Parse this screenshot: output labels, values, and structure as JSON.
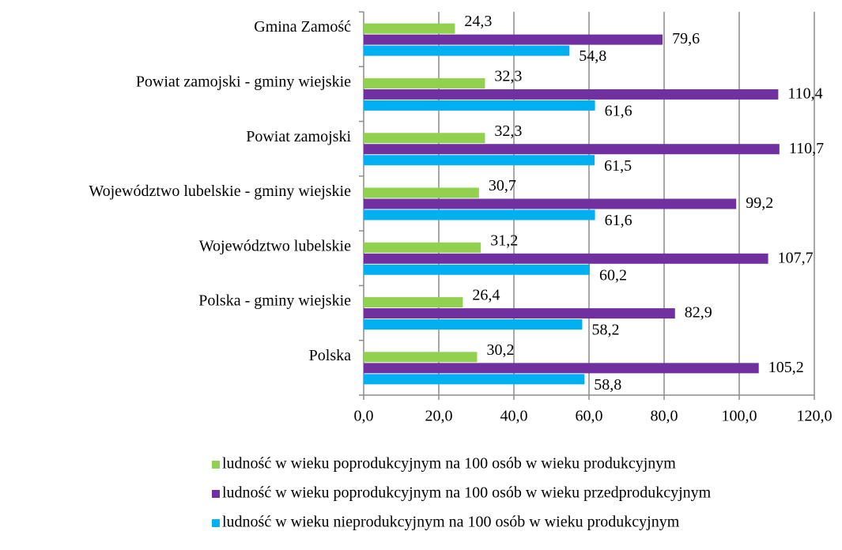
{
  "chart_data": {
    "type": "bar",
    "orientation": "horizontal",
    "categories": [
      "Gmina Zamość",
      "Powiat zamojski - gminy wiejskie",
      "Powiat zamojski",
      "Województwo lubelskie - gminy wiejskie",
      "Województwo lubelskie",
      "Polska - gminy wiejskie",
      "Polska"
    ],
    "series": [
      {
        "name": "ludność w wieku poprodukcyjnym na 100 osób w wieku produkcyjnym",
        "color": "#92d050",
        "values": [
          24.3,
          32.3,
          32.3,
          30.7,
          31.2,
          26.4,
          30.2
        ],
        "value_labels": [
          "24,3",
          "32,3",
          "32,3",
          "30,7",
          "31,2",
          "26,4",
          "30,2"
        ]
      },
      {
        "name": "ludność w wieku poprodukcyjnym na 100 osób w wieku przedprodukcyjnym",
        "color": "#7030a0",
        "values": [
          79.6,
          110.4,
          110.7,
          99.2,
          107.7,
          82.9,
          105.2
        ],
        "value_labels": [
          "79,6",
          "110,4",
          "110,7",
          "99,2",
          "107,7",
          "82,9",
          "105,2"
        ]
      },
      {
        "name": "ludność w wieku nieprodukcyjnym na 100 osób w wieku produkcyjnym",
        "color": "#00b0f0",
        "values": [
          54.8,
          61.6,
          61.5,
          61.6,
          60.2,
          58.2,
          58.8
        ],
        "value_labels": [
          "54,8",
          "61,6",
          "61,5",
          "61,6",
          "60,2",
          "58,2",
          "58,8"
        ]
      }
    ],
    "xlim": [
      0,
      120
    ],
    "xticks": [
      {
        "value": 0,
        "label": "0,0"
      },
      {
        "value": 20,
        "label": "20,0"
      },
      {
        "value": 40,
        "label": "40,0"
      },
      {
        "value": 60,
        "label": "60,0"
      },
      {
        "value": 80,
        "label": "80,0"
      },
      {
        "value": 100,
        "label": "100,0"
      },
      {
        "value": 120,
        "label": "120,0"
      }
    ],
    "grid": true,
    "legend": "bottom"
  }
}
